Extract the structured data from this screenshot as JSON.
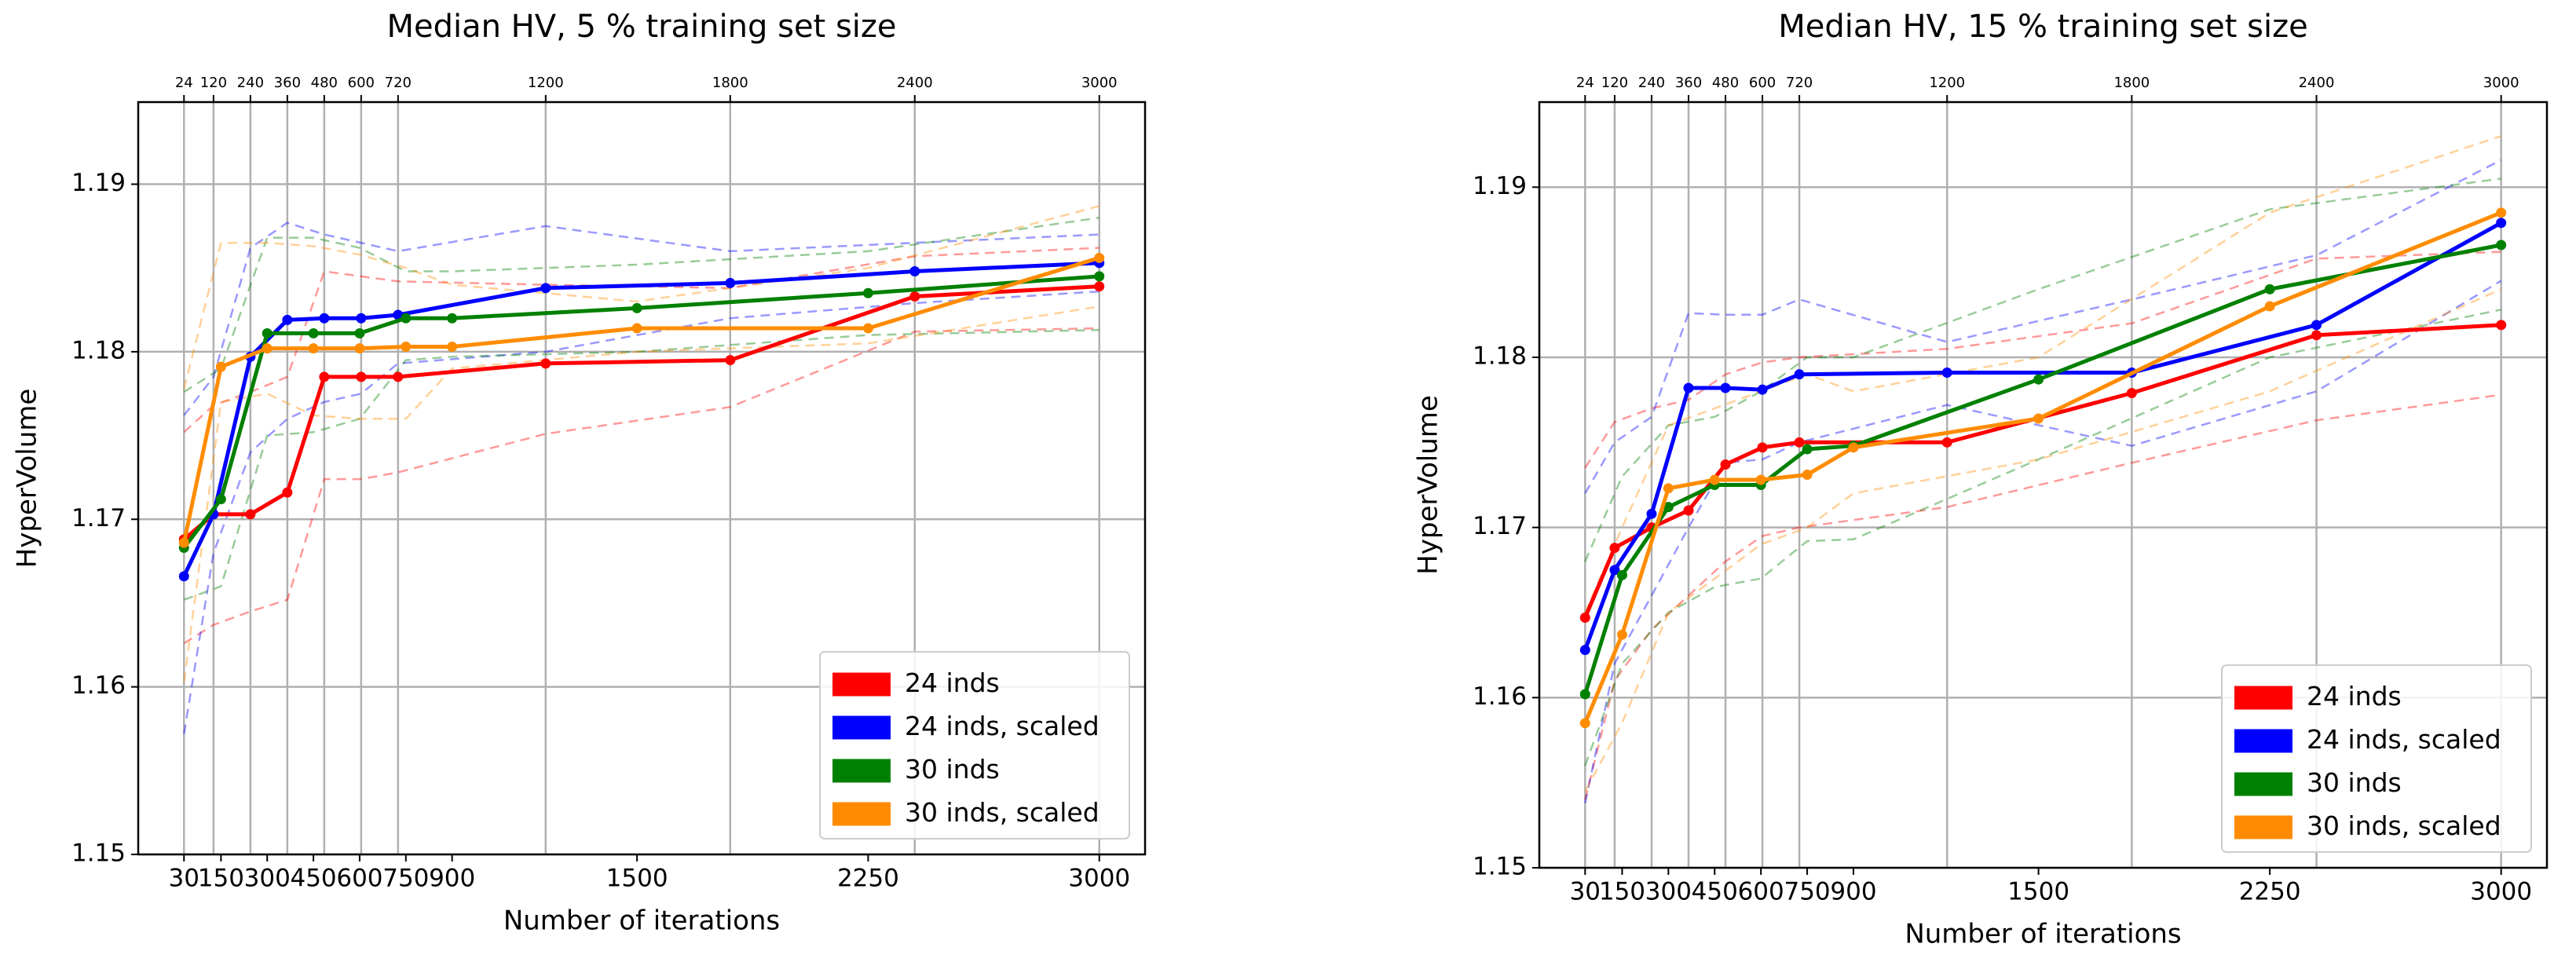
{
  "chart_data": [
    {
      "type": "line",
      "title": "Median HV, 5 % training set size",
      "xlabel": "Number of iterations",
      "ylabel": "HyperVolume",
      "xlim": [
        -118.5,
        3148.5
      ],
      "xticks": [
        30,
        150,
        300,
        450,
        600,
        750,
        900,
        1500,
        2250,
        3000
      ],
      "x2lim": [
        -124.8,
        3148.8
      ],
      "x2ticks": [
        24,
        120,
        240,
        360,
        480,
        600,
        720,
        1200,
        1800,
        2400,
        3000
      ],
      "ylim": [
        1.15,
        1.1949
      ],
      "yticks": [
        1.15,
        1.16,
        1.17,
        1.18,
        1.19
      ],
      "grid": true,
      "legend": "lower right",
      "series": [
        {
          "name": "24 inds",
          "color": "#ff0000",
          "axis": "x2",
          "x": [
            24,
            120,
            240,
            360,
            480,
            600,
            720,
            1200,
            1800,
            2400,
            3000
          ],
          "values": [
            1.1688,
            1.1703,
            1.1703,
            1.1716,
            1.1785,
            1.1785,
            1.1785,
            1.1793,
            1.1795,
            1.1833,
            1.1839
          ],
          "lower": [
            1.1626,
            1.1637,
            1.1645,
            1.1652,
            1.1724,
            1.1724,
            1.1728,
            1.1751,
            1.1767,
            1.1812,
            1.1814
          ],
          "upper": [
            1.1752,
            1.1768,
            1.1776,
            1.1785,
            1.1848,
            1.1845,
            1.1842,
            1.184,
            1.1838,
            1.1857,
            1.1862
          ]
        },
        {
          "name": "24 inds, scaled",
          "color": "#0000ff",
          "axis": "x2",
          "x": [
            24,
            120,
            240,
            360,
            480,
            600,
            720,
            1200,
            1800,
            2400,
            3000
          ],
          "values": [
            1.1666,
            1.1703,
            1.1797,
            1.1819,
            1.182,
            1.182,
            1.1822,
            1.1838,
            1.1841,
            1.1848,
            1.1853
          ],
          "lower": [
            1.1572,
            1.168,
            1.174,
            1.176,
            1.177,
            1.1775,
            1.1793,
            1.18,
            1.182,
            1.1829,
            1.1836
          ],
          "upper": [
            1.1762,
            1.1785,
            1.1862,
            1.1877,
            1.187,
            1.1865,
            1.186,
            1.1875,
            1.186,
            1.1865,
            1.187
          ]
        },
        {
          "name": "30 inds",
          "color": "#008000",
          "x": [
            30,
            150,
            300,
            450,
            600,
            750,
            900,
            1500,
            2250,
            3000
          ],
          "values": [
            1.1683,
            1.1712,
            1.1811,
            1.1811,
            1.1811,
            1.182,
            1.182,
            1.1826,
            1.1835,
            1.1845
          ],
          "lower": [
            1.1652,
            1.166,
            1.175,
            1.1752,
            1.176,
            1.1795,
            1.1797,
            1.18,
            1.181,
            1.1813
          ],
          "upper": [
            1.1776,
            1.179,
            1.1868,
            1.1868,
            1.1862,
            1.1848,
            1.1848,
            1.1852,
            1.186,
            1.188
          ]
        },
        {
          "name": "30 inds, scaled",
          "color": "#ff8c00",
          "x": [
            30,
            150,
            300,
            450,
            600,
            750,
            900,
            1500,
            2250,
            3000
          ],
          "values": [
            1.1686,
            1.1791,
            1.1802,
            1.1802,
            1.1802,
            1.1803,
            1.1803,
            1.1814,
            1.1814,
            1.1856
          ],
          "lower": [
            1.1603,
            1.177,
            1.1775,
            1.1762,
            1.176,
            1.176,
            1.179,
            1.18,
            1.1805,
            1.1827
          ],
          "upper": [
            1.1778,
            1.1865,
            1.1865,
            1.1863,
            1.1858,
            1.185,
            1.184,
            1.183,
            1.185,
            1.1887
          ]
        }
      ]
    },
    {
      "type": "line",
      "title": "Median HV, 15 % training set size",
      "xlabel": "Number of iterations",
      "ylabel": "HyperVolume",
      "xlim": [
        -118.5,
        3148.5
      ],
      "xticks": [
        30,
        150,
        300,
        450,
        600,
        750,
        900,
        1500,
        2250,
        3000
      ],
      "x2lim": [
        -124.8,
        3148.8
      ],
      "x2ticks": [
        24,
        120,
        240,
        360,
        480,
        600,
        720,
        1200,
        1800,
        2400,
        3000
      ],
      "ylim": [
        1.15,
        1.195
      ],
      "yticks": [
        1.15,
        1.16,
        1.17,
        1.18,
        1.19
      ],
      "grid": true,
      "legend": "lower right",
      "series": [
        {
          "name": "24 inds",
          "color": "#ff0000",
          "axis": "x2",
          "x": [
            24,
            120,
            240,
            360,
            480,
            600,
            720,
            1200,
            1800,
            2400,
            3000
          ],
          "values": [
            1.1647,
            1.1688,
            1.17,
            1.171,
            1.1737,
            1.1747,
            1.175,
            1.175,
            1.1779,
            1.1813,
            1.1819
          ],
          "lower": [
            1.154,
            1.161,
            1.164,
            1.166,
            1.168,
            1.1695,
            1.17,
            1.1712,
            1.1738,
            1.1763,
            1.1778
          ],
          "upper": [
            1.1735,
            1.1762,
            1.177,
            1.1775,
            1.179,
            1.1797,
            1.18,
            1.1805,
            1.182,
            1.1858,
            1.1862
          ]
        },
        {
          "name": "24 inds, scaled",
          "color": "#0000ff",
          "axis": "x2",
          "x": [
            24,
            120,
            240,
            360,
            480,
            600,
            720,
            1200,
            1800,
            2400,
            3000
          ],
          "values": [
            1.1628,
            1.1675,
            1.1708,
            1.1782,
            1.1782,
            1.1781,
            1.179,
            1.1791,
            1.1791,
            1.1819,
            1.1879
          ],
          "lower": [
            1.1538,
            1.162,
            1.166,
            1.17,
            1.1738,
            1.174,
            1.175,
            1.1772,
            1.1748,
            1.178,
            1.1845
          ],
          "upper": [
            1.172,
            1.175,
            1.1765,
            1.1826,
            1.1825,
            1.1825,
            1.1834,
            1.1809,
            1.1834,
            1.186,
            1.1916
          ]
        },
        {
          "name": "30 inds",
          "color": "#008000",
          "x": [
            30,
            150,
            300,
            450,
            600,
            750,
            900,
            1500,
            2250,
            3000
          ],
          "values": [
            1.1602,
            1.1672,
            1.1712,
            1.1725,
            1.1725,
            1.1746,
            1.1748,
            1.1787,
            1.184,
            1.1866
          ],
          "lower": [
            1.156,
            1.162,
            1.165,
            1.1665,
            1.167,
            1.1692,
            1.1693,
            1.174,
            1.18,
            1.1828
          ],
          "upper": [
            1.168,
            1.173,
            1.176,
            1.1765,
            1.178,
            1.18,
            1.18,
            1.184,
            1.1887,
            1.1905
          ]
        },
        {
          "name": "30 inds, scaled",
          "color": "#ff8c00",
          "x": [
            30,
            150,
            300,
            450,
            600,
            750,
            900,
            1500,
            2250,
            3000
          ],
          "values": [
            1.1585,
            1.1637,
            1.1723,
            1.1728,
            1.1728,
            1.1731,
            1.1747,
            1.1764,
            1.183,
            1.1885
          ],
          "lower": [
            1.1545,
            1.1585,
            1.165,
            1.167,
            1.169,
            1.17,
            1.172,
            1.174,
            1.178,
            1.184
          ],
          "upper": [
            1.165,
            1.17,
            1.176,
            1.177,
            1.178,
            1.179,
            1.178,
            1.18,
            1.1885,
            1.193
          ]
        }
      ]
    }
  ]
}
